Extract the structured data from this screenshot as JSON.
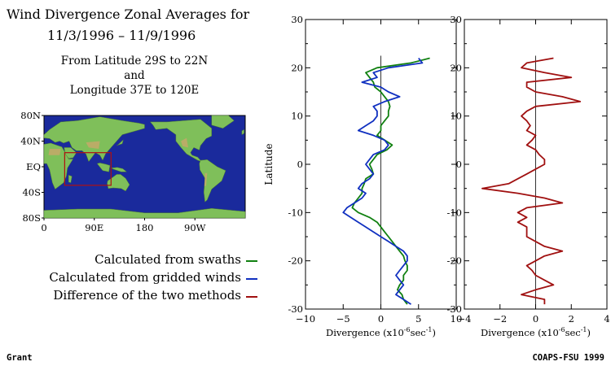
{
  "header": {
    "title_line1": "Wind Divergence Zonal Averages for",
    "title_line2": "11/3/1996 – 11/9/1996",
    "region_line1": "From Latitude 29S to 22N",
    "region_line2": "and",
    "region_line3": "Longitude 37E to 120E"
  },
  "map": {
    "lat_labels": [
      "80N",
      "40N",
      "EQ",
      "40S",
      "80S"
    ],
    "lon_labels": [
      "0",
      "90E",
      "180",
      "90W"
    ],
    "region_box": {
      "lat_min": -29,
      "lat_max": 22,
      "lon_min": 37,
      "lon_max": 120
    },
    "colors": {
      "ocean": "#1a2a9c",
      "land": "#7fbf5a",
      "box": "#b01010"
    }
  },
  "legend": {
    "items": [
      {
        "label": "Calculated from swaths",
        "color": "#108010"
      },
      {
        "label": "Calculated from gridded winds",
        "color": "#1030c0"
      },
      {
        "label": "Difference of the two methods",
        "color": "#a01010"
      }
    ]
  },
  "footer": {
    "left": "Grant",
    "right": "COAPS-FSU 1999"
  },
  "chart_data": [
    {
      "type": "line",
      "orientation": "vertical-profile",
      "xlabel_prefix": "Divergence (x10",
      "xlabel_exp1": "-6",
      "xlabel_mid": "sec",
      "xlabel_exp2": "-1",
      "xlabel_suffix": ")",
      "ylabel": "Latitude",
      "xlim": [
        -10,
        10
      ],
      "ylim": [
        -30,
        30
      ],
      "xticks": [
        -10,
        -5,
        0,
        5,
        10
      ],
      "yticks": [
        -30,
        -20,
        -10,
        0,
        10,
        20,
        30
      ],
      "y": [
        22,
        21,
        20,
        19,
        18,
        17,
        16,
        15,
        14,
        13,
        12,
        11,
        10,
        9,
        8,
        7,
        6,
        5,
        4,
        3,
        2,
        1,
        0,
        -1,
        -2,
        -3,
        -4,
        -5,
        -6,
        -7,
        -8,
        -9,
        -10,
        -11,
        -12,
        -13,
        -14,
        -15,
        -16,
        -17,
        -18,
        -19,
        -20,
        -21,
        -22,
        -23,
        -24,
        -25,
        -26,
        -27,
        -28,
        -29
      ],
      "series": [
        {
          "color": "#108010",
          "values": [
            6.5,
            4.0,
            -0.5,
            -2.0,
            -1.5,
            -1.0,
            -0.8,
            0.0,
            0.5,
            1.0,
            1.2,
            1.0,
            1.0,
            0.5,
            0.0,
            0.0,
            -0.5,
            0.5,
            1.5,
            0.8,
            -0.5,
            -1.0,
            -1.5,
            -1.2,
            -1.0,
            -2.0,
            -2.2,
            -2.5,
            -2.5,
            -3.0,
            -3.5,
            -3.8,
            -3.0,
            -1.5,
            -0.5,
            0.0,
            0.5,
            1.0,
            1.5,
            2.0,
            2.5,
            3.0,
            3.2,
            3.5,
            3.5,
            3.0,
            3.0,
            2.5,
            2.2,
            2.8,
            3.0,
            3.5
          ]
        },
        {
          "color": "#1030c0",
          "values": [
            5.0,
            5.5,
            1.0,
            -1.0,
            -0.5,
            -2.5,
            0.0,
            1.0,
            2.5,
            0.5,
            -1.0,
            -0.5,
            -0.5,
            -1.0,
            -2.0,
            -3.0,
            -1.0,
            0.5,
            1.0,
            0.5,
            -1.0,
            -1.5,
            -2.0,
            -1.5,
            -1.0,
            -1.5,
            -2.5,
            -3.0,
            -2.0,
            -2.5,
            -3.5,
            -4.5,
            -5.0,
            -4.0,
            -3.0,
            -2.0,
            -1.0,
            0.0,
            1.0,
            2.0,
            3.0,
            3.5,
            3.5,
            3.0,
            2.5,
            2.0,
            2.5,
            3.0,
            2.5,
            2.0,
            3.0,
            4.0
          ]
        }
      ]
    },
    {
      "type": "line",
      "orientation": "vertical-profile",
      "xlabel_prefix": "Divergence (x10",
      "xlabel_exp1": "-6",
      "xlabel_mid": "sec",
      "xlabel_exp2": "-1",
      "xlabel_suffix": ")",
      "ylabel": "",
      "xlim": [
        -4,
        4
      ],
      "ylim": [
        -30,
        30
      ],
      "xticks": [
        -4,
        -2,
        0,
        2,
        4
      ],
      "yticks": [
        -30,
        -20,
        -10,
        0,
        10,
        20,
        30
      ],
      "y": [
        22,
        21,
        20,
        19,
        18,
        17,
        16,
        15,
        14,
        13,
        12,
        11,
        10,
        9,
        8,
        7,
        6,
        5,
        4,
        3,
        2,
        1,
        0,
        -1,
        -2,
        -3,
        -4,
        -5,
        -6,
        -7,
        -8,
        -9,
        -10,
        -11,
        -12,
        -13,
        -14,
        -15,
        -16,
        -17,
        -18,
        -19,
        -20,
        -21,
        -22,
        -23,
        -24,
        -25,
        -26,
        -27,
        -28,
        -29
      ],
      "series": [
        {
          "color": "#a01010",
          "values": [
            1.0,
            -0.5,
            -0.8,
            0.5,
            2.0,
            -0.5,
            -0.5,
            0.0,
            1.5,
            2.5,
            0.0,
            -0.5,
            -0.8,
            -0.5,
            -0.3,
            -0.5,
            0.0,
            -0.2,
            -0.5,
            0.0,
            0.2,
            0.5,
            0.5,
            0.0,
            -0.5,
            -1.0,
            -1.5,
            -3.0,
            -1.0,
            0.5,
            1.5,
            -0.5,
            -1.0,
            -0.5,
            -1.0,
            -0.5,
            -0.5,
            -0.5,
            0.0,
            0.5,
            1.5,
            0.5,
            0.0,
            -0.5,
            -0.2,
            0.0,
            0.5,
            1.0,
            0.0,
            -0.8,
            0.5,
            0.5
          ]
        }
      ]
    }
  ]
}
